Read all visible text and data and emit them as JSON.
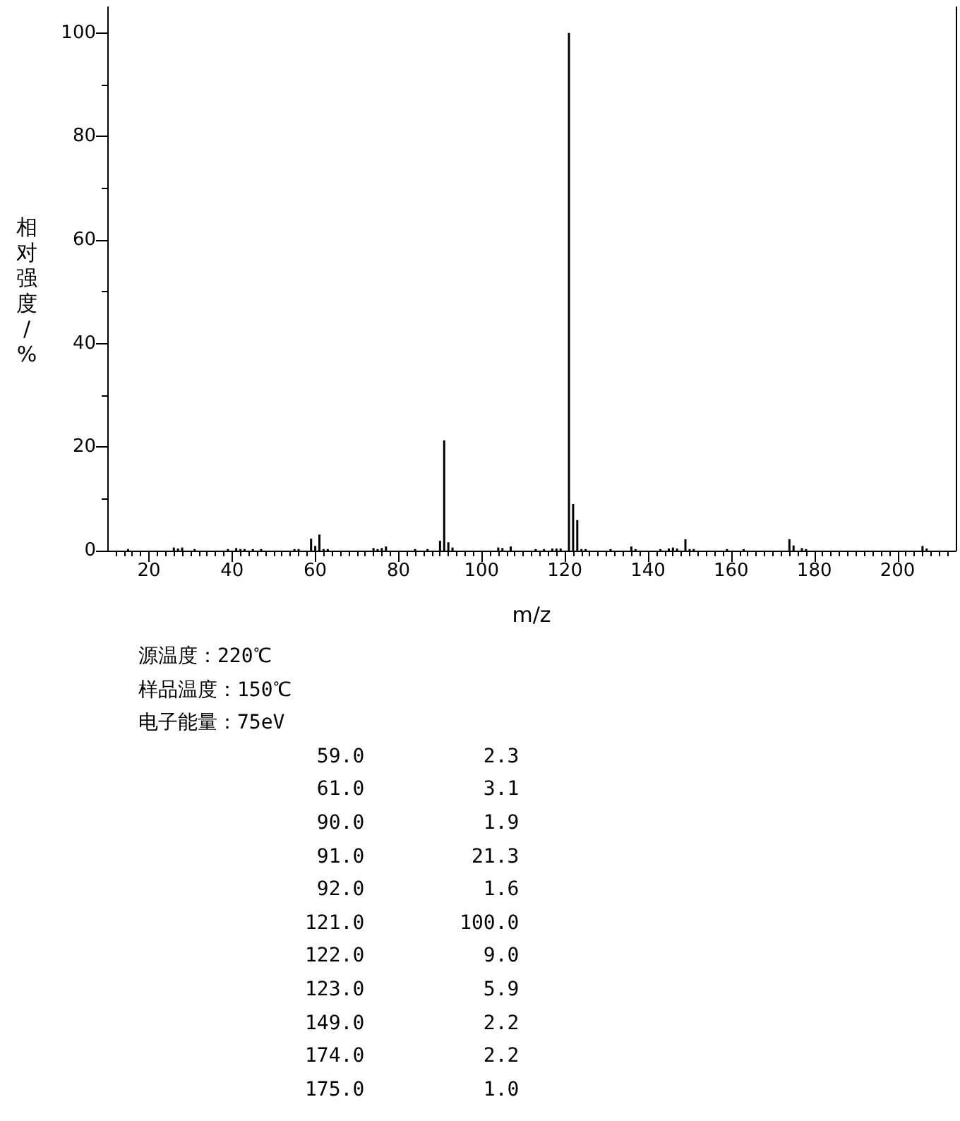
{
  "chart_data": {
    "type": "bar",
    "xlabel": "m/z",
    "ylabel": "相对强度/%",
    "color": "#000000",
    "grid": false,
    "x": [
      15,
      26,
      27,
      28,
      31,
      39,
      41,
      42,
      43,
      45,
      47,
      55,
      56,
      59,
      60,
      61,
      62,
      63,
      74,
      75,
      76,
      77,
      84,
      87,
      90,
      91,
      92,
      93,
      104,
      105,
      107,
      113,
      115,
      117,
      118,
      119,
      121,
      122,
      123,
      124,
      125,
      131,
      136,
      137,
      143,
      145,
      146,
      147,
      149,
      150,
      151,
      159,
      163,
      174,
      175,
      177,
      178,
      206,
      207
    ],
    "values": [
      0.3,
      0.6,
      0.4,
      0.6,
      0.3,
      0.3,
      0.5,
      0.3,
      0.3,
      0.3,
      0.3,
      0.3,
      0.3,
      2.3,
      0.9,
      3.1,
      0.3,
      0.3,
      0.5,
      0.3,
      0.5,
      0.8,
      0.3,
      0.3,
      1.9,
      21.3,
      1.6,
      0.6,
      0.6,
      0.5,
      0.8,
      0.3,
      0.3,
      0.4,
      0.4,
      0.4,
      100.0,
      9.0,
      5.9,
      0.3,
      0.3,
      0.3,
      0.8,
      0.3,
      0.3,
      0.4,
      0.6,
      0.4,
      2.2,
      0.3,
      0.3,
      0.3,
      0.3,
      2.2,
      1.0,
      0.5,
      0.3,
      0.9,
      0.4
    ],
    "xlim": [
      10,
      214
    ],
    "xticks": [
      {
        "value": 12,
        "label": null
      },
      {
        "value": 14,
        "label": null
      },
      {
        "value": 16,
        "label": null
      },
      {
        "value": 18,
        "label": null
      },
      20,
      {
        "value": 22,
        "label": null
      },
      {
        "value": 24,
        "label": null
      },
      {
        "value": 26,
        "label": null
      },
      {
        "value": 28,
        "label": null
      },
      {
        "value": 30,
        "label": null
      },
      {
        "value": 32,
        "label": null
      },
      {
        "value": 34,
        "label": null
      },
      {
        "value": 36,
        "label": null
      },
      {
        "value": 38,
        "label": null
      },
      40,
      {
        "value": 42,
        "label": null
      },
      {
        "value": 44,
        "label": null
      },
      {
        "value": 46,
        "label": null
      },
      {
        "value": 48,
        "label": null
      },
      {
        "value": 50,
        "label": null
      },
      {
        "value": 52,
        "label": null
      },
      {
        "value": 54,
        "label": null
      },
      {
        "value": 56,
        "label": null
      },
      {
        "value": 58,
        "label": null
      },
      60,
      {
        "value": 62,
        "label": null
      },
      {
        "value": 64,
        "label": null
      },
      {
        "value": 66,
        "label": null
      },
      {
        "value": 68,
        "label": null
      },
      {
        "value": 70,
        "label": null
      },
      {
        "value": 72,
        "label": null
      },
      {
        "value": 74,
        "label": null
      },
      {
        "value": 76,
        "label": null
      },
      {
        "value": 78,
        "label": null
      },
      80,
      {
        "value": 82,
        "label": null
      },
      {
        "value": 84,
        "label": null
      },
      {
        "value": 86,
        "label": null
      },
      {
        "value": 88,
        "label": null
      },
      {
        "value": 90,
        "label": null
      },
      {
        "value": 92,
        "label": null
      },
      {
        "value": 94,
        "label": null
      },
      {
        "value": 96,
        "label": null
      },
      {
        "value": 98,
        "label": null
      },
      100,
      {
        "value": 102,
        "label": null
      },
      {
        "value": 104,
        "label": null
      },
      {
        "value": 106,
        "label": null
      },
      {
        "value": 108,
        "label": null
      },
      {
        "value": 110,
        "label": null
      },
      {
        "value": 112,
        "label": null
      },
      {
        "value": 114,
        "label": null
      },
      {
        "value": 116,
        "label": null
      },
      {
        "value": 118,
        "label": null
      },
      120,
      {
        "value": 122,
        "label": null
      },
      {
        "value": 124,
        "label": null
      },
      {
        "value": 126,
        "label": null
      },
      {
        "value": 128,
        "label": null
      },
      {
        "value": 130,
        "label": null
      },
      {
        "value": 132,
        "label": null
      },
      {
        "value": 134,
        "label": null
      },
      {
        "value": 136,
        "label": null
      },
      {
        "value": 138,
        "label": null
      },
      140,
      {
        "value": 142,
        "label": null
      },
      {
        "value": 144,
        "label": null
      },
      {
        "value": 146,
        "label": null
      },
      {
        "value": 148,
        "label": null
      },
      {
        "value": 150,
        "label": null
      },
      {
        "value": 152,
        "label": null
      },
      {
        "value": 154,
        "label": null
      },
      {
        "value": 156,
        "label": null
      },
      {
        "value": 158,
        "label": null
      },
      160,
      {
        "value": 162,
        "label": null
      },
      {
        "value": 164,
        "label": null
      },
      {
        "value": 166,
        "label": null
      },
      {
        "value": 168,
        "label": null
      },
      {
        "value": 170,
        "label": null
      },
      {
        "value": 172,
        "label": null
      },
      {
        "value": 174,
        "label": null
      },
      {
        "value": 176,
        "label": null
      },
      {
        "value": 178,
        "label": null
      },
      180,
      {
        "value": 182,
        "label": null
      },
      {
        "value": 184,
        "label": null
      },
      {
        "value": 186,
        "label": null
      },
      {
        "value": 188,
        "label": null
      },
      {
        "value": 190,
        "label": null
      },
      {
        "value": 192,
        "label": null
      },
      {
        "value": 194,
        "label": null
      },
      {
        "value": 196,
        "label": null
      },
      {
        "value": 198,
        "label": null
      },
      200,
      {
        "value": 202,
        "label": null
      },
      {
        "value": 204,
        "label": null
      },
      {
        "value": 206,
        "label": null
      },
      {
        "value": 208,
        "label": null
      },
      {
        "value": 210,
        "label": null
      },
      {
        "value": 212,
        "label": null
      }
    ],
    "ylim": [
      0,
      105
    ],
    "yticks": [
      0,
      {
        "value": 10,
        "label": null
      },
      20,
      {
        "value": 30,
        "label": null
      },
      40,
      {
        "value": 50,
        "label": null
      },
      60,
      {
        "value": 70,
        "label": null
      },
      80,
      {
        "value": 90,
        "label": null
      },
      100
    ],
    "annotations": [
      "源温度：220℃",
      "样品温度：150℃",
      "电子能量：75eV",
      "               59.0          2.3",
      "               61.0          3.1",
      "               90.0          1.9",
      "               91.0         21.3",
      "               92.0          1.6",
      "              121.0        100.0",
      "              122.0          9.0",
      "              123.0          5.9",
      "              149.0          2.2",
      "              174.0          2.2",
      "              175.0          1.0"
    ]
  }
}
